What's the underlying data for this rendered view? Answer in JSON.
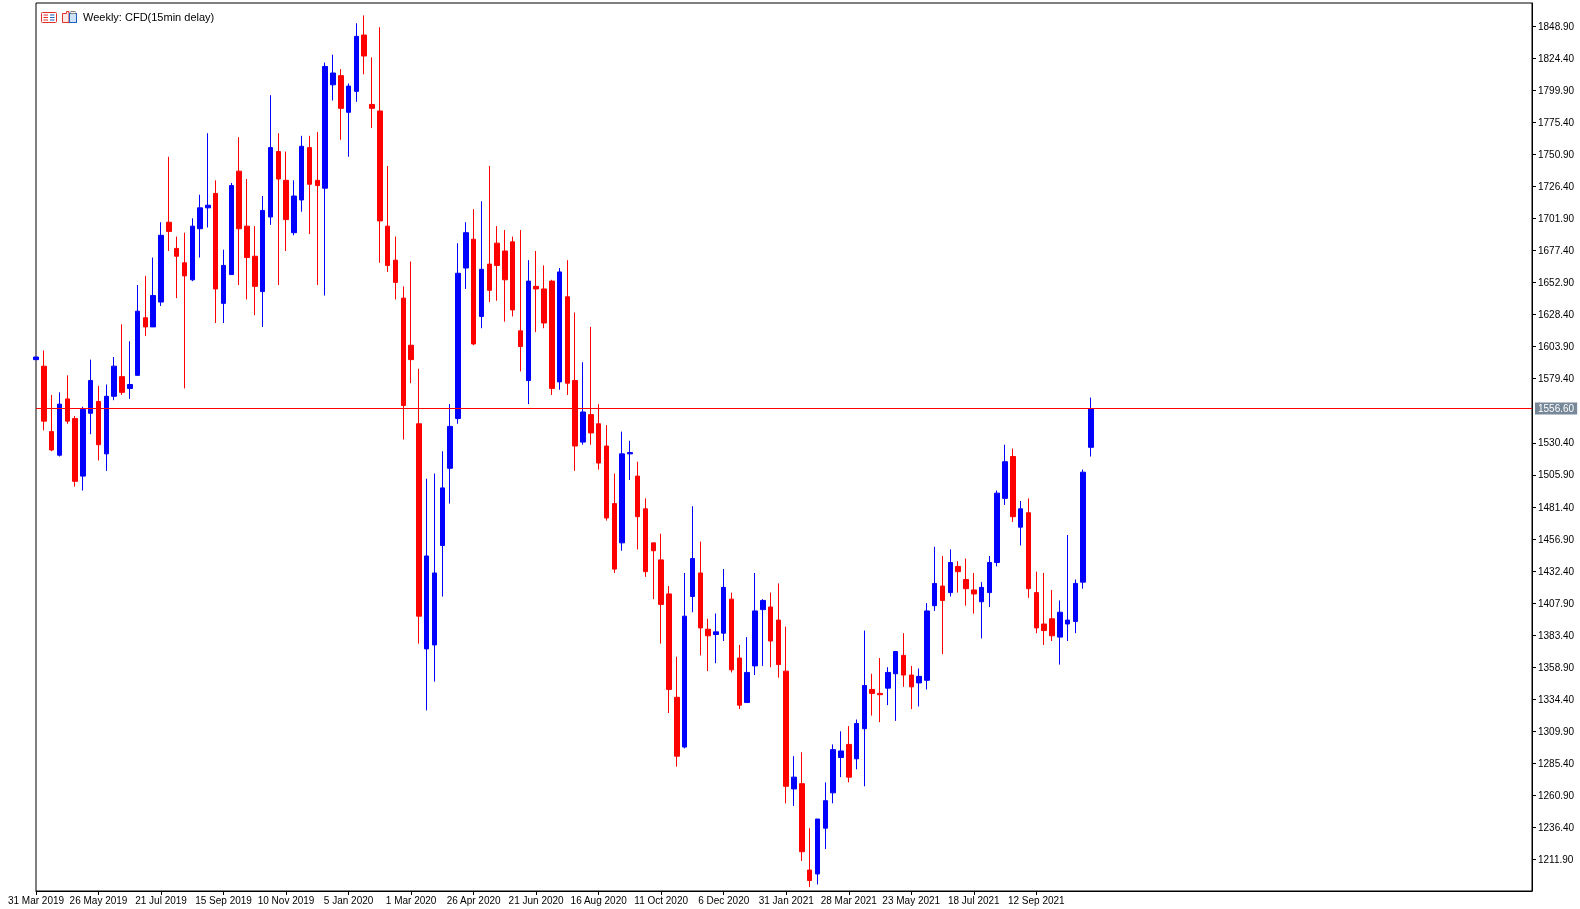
{
  "chart_data": {
    "type": "candlestick",
    "title": "Weekly: CFD(15min delay)",
    "x": [
      "2019-03-31",
      "2019-04-07",
      "2019-04-14",
      "2019-04-21",
      "2019-04-28",
      "2019-05-05",
      "2019-05-12",
      "2019-05-19",
      "2019-05-26",
      "2019-06-02",
      "2019-06-09",
      "2019-06-16",
      "2019-06-23",
      "2019-06-30",
      "2019-07-07",
      "2019-07-14",
      "2019-07-21",
      "2019-07-28",
      "2019-08-04",
      "2019-08-11",
      "2019-08-18",
      "2019-08-25",
      "2019-09-01",
      "2019-09-08",
      "2019-09-15",
      "2019-09-22",
      "2019-09-29",
      "2019-10-06",
      "2019-10-13",
      "2019-10-20",
      "2019-10-27",
      "2019-11-03",
      "2019-11-10",
      "2019-11-17",
      "2019-11-24",
      "2019-12-01",
      "2019-12-08",
      "2019-12-15",
      "2019-12-22",
      "2019-12-29",
      "2020-01-05",
      "2020-01-12",
      "2020-01-19",
      "2020-01-26",
      "2020-02-02",
      "2020-02-09",
      "2020-02-16",
      "2020-02-23",
      "2020-03-01",
      "2020-03-08",
      "2020-03-15",
      "2020-03-22",
      "2020-03-29",
      "2020-04-05",
      "2020-04-12",
      "2020-04-19",
      "2020-04-26",
      "2020-05-03",
      "2020-05-10",
      "2020-05-17",
      "2020-05-24",
      "2020-05-31",
      "2020-06-07",
      "2020-06-14",
      "2020-06-21",
      "2020-06-28",
      "2020-07-05",
      "2020-07-12",
      "2020-07-19",
      "2020-07-26",
      "2020-08-02",
      "2020-08-09",
      "2020-08-16",
      "2020-08-23",
      "2020-08-30",
      "2020-09-06",
      "2020-09-13",
      "2020-09-20",
      "2020-09-27",
      "2020-10-04",
      "2020-10-11",
      "2020-10-18",
      "2020-10-25",
      "2020-11-01",
      "2020-11-08",
      "2020-11-15",
      "2020-11-22",
      "2020-11-29",
      "2020-12-06",
      "2020-12-13",
      "2020-12-20",
      "2020-12-27",
      "2021-01-03",
      "2021-01-10",
      "2021-01-17",
      "2021-01-24",
      "2021-01-31",
      "2021-02-07",
      "2021-02-14",
      "2021-02-21",
      "2021-02-28",
      "2021-03-07",
      "2021-03-14",
      "2021-03-21",
      "2021-03-28",
      "2021-04-04",
      "2021-04-11",
      "2021-04-18",
      "2021-04-25",
      "2021-05-02",
      "2021-05-09",
      "2021-05-16",
      "2021-05-23",
      "2021-05-30",
      "2021-06-06",
      "2021-06-13",
      "2021-06-20",
      "2021-06-27",
      "2021-07-04",
      "2021-07-11",
      "2021-07-18",
      "2021-07-25",
      "2021-08-01",
      "2021-08-08",
      "2021-08-15",
      "2021-08-22",
      "2021-08-29",
      "2021-09-05",
      "2021-09-12",
      "2021-09-19",
      "2021-09-26",
      "2021-10-03",
      "2021-10-10",
      "2021-10-17",
      "2021-10-24",
      "2021-10-31"
    ],
    "ohlc": [
      [
        1594,
        1596,
        1594,
        1596
      ],
      [
        1589,
        1601,
        1540,
        1547
      ],
      [
        1539,
        1567,
        1524,
        1525
      ],
      [
        1521,
        1569,
        1520,
        1560
      ],
      [
        1564,
        1582,
        1545,
        1547
      ],
      [
        1549,
        1551,
        1497,
        1501
      ],
      [
        1505,
        1558,
        1494,
        1556
      ],
      [
        1553,
        1594,
        1537,
        1578
      ],
      [
        1562,
        1574,
        1517,
        1529
      ],
      [
        1522,
        1575,
        1509,
        1566
      ],
      [
        1566,
        1596,
        1563,
        1589
      ],
      [
        1581,
        1621,
        1567,
        1569
      ],
      [
        1572,
        1608,
        1564,
        1575
      ],
      [
        1582,
        1651,
        1582,
        1631
      ],
      [
        1626,
        1658,
        1612,
        1619
      ],
      [
        1619,
        1672,
        1619,
        1643
      ],
      [
        1638,
        1699,
        1635,
        1689
      ],
      [
        1699,
        1749,
        1677,
        1692
      ],
      [
        1679,
        1688,
        1641,
        1673
      ],
      [
        1668,
        1691,
        1572,
        1658
      ],
      [
        1655,
        1702,
        1654,
        1696
      ],
      [
        1694,
        1720,
        1672,
        1710
      ],
      [
        1710,
        1767,
        1695,
        1712
      ],
      [
        1721,
        1731,
        1622,
        1648
      ],
      [
        1637,
        1678,
        1622,
        1666
      ],
      [
        1659,
        1729,
        1659,
        1727
      ],
      [
        1738,
        1764,
        1651,
        1694
      ],
      [
        1696,
        1732,
        1640,
        1672
      ],
      [
        1673,
        1696,
        1628,
        1650
      ],
      [
        1646,
        1719,
        1619,
        1708
      ],
      [
        1703,
        1796,
        1697,
        1756
      ],
      [
        1753,
        1767,
        1651,
        1732
      ],
      [
        1731,
        1753,
        1677,
        1701
      ],
      [
        1691,
        1731,
        1689,
        1719
      ],
      [
        1716,
        1765,
        1707,
        1757
      ],
      [
        1756,
        1765,
        1690,
        1728
      ],
      [
        1731,
        1768,
        1651,
        1727
      ],
      [
        1725,
        1821,
        1643,
        1818
      ],
      [
        1804,
        1827,
        1792,
        1813
      ],
      [
        1811,
        1816,
        1762,
        1786
      ],
      [
        1783,
        1805,
        1749,
        1803
      ],
      [
        1799,
        1851,
        1791,
        1841
      ],
      [
        1842,
        1857,
        1812,
        1826
      ],
      [
        1789,
        1825,
        1771,
        1786
      ],
      [
        1784,
        1848,
        1668,
        1700
      ],
      [
        1696,
        1742,
        1661,
        1666
      ],
      [
        1670,
        1688,
        1640,
        1653
      ],
      [
        1641,
        1650,
        1533,
        1559
      ],
      [
        1605,
        1669,
        1576,
        1594
      ],
      [
        1545,
        1587,
        1377,
        1398
      ],
      [
        1373,
        1503,
        1326,
        1444
      ],
      [
        1376,
        1507,
        1348,
        1431
      ],
      [
        1452,
        1524,
        1413,
        1496
      ],
      [
        1511,
        1560,
        1484,
        1543
      ],
      [
        1549,
        1683,
        1545,
        1660
      ],
      [
        1664,
        1699,
        1648,
        1691
      ],
      [
        1686,
        1709,
        1605,
        1606
      ],
      [
        1627,
        1715,
        1618,
        1663
      ],
      [
        1667,
        1742,
        1638,
        1647
      ],
      [
        1683,
        1696,
        1639,
        1666
      ],
      [
        1677,
        1693,
        1623,
        1655
      ],
      [
        1684,
        1688,
        1627,
        1632
      ],
      [
        1616,
        1693,
        1585,
        1604
      ],
      [
        1578,
        1670,
        1560,
        1654
      ],
      [
        1650,
        1677,
        1615,
        1648
      ],
      [
        1648,
        1666,
        1618,
        1622
      ],
      [
        1654,
        1655,
        1567,
        1572
      ],
      [
        1577,
        1664,
        1571,
        1661
      ],
      [
        1642,
        1670,
        1567,
        1576
      ],
      [
        1578,
        1630,
        1509,
        1528
      ],
      [
        1531,
        1592,
        1529,
        1554
      ],
      [
        1552,
        1619,
        1529,
        1538
      ],
      [
        1545,
        1560,
        1510,
        1515
      ],
      [
        1528,
        1544,
        1471,
        1473
      ],
      [
        1484,
        1507,
        1431,
        1434
      ],
      [
        1454,
        1539,
        1448,
        1522
      ],
      [
        1522,
        1532,
        1502,
        1523
      ],
      [
        1505,
        1516,
        1449,
        1474
      ],
      [
        1480,
        1488,
        1428,
        1432
      ],
      [
        1454,
        1454,
        1411,
        1448
      ],
      [
        1441,
        1461,
        1377,
        1407
      ],
      [
        1415,
        1421,
        1324,
        1342
      ],
      [
        1336,
        1367,
        1283,
        1291
      ],
      [
        1298,
        1431,
        1297,
        1398
      ],
      [
        1413,
        1482,
        1401,
        1442
      ],
      [
        1431,
        1455,
        1368,
        1389
      ],
      [
        1388,
        1396,
        1356,
        1383
      ],
      [
        1384,
        1400,
        1362,
        1386
      ],
      [
        1385,
        1434,
        1379,
        1420
      ],
      [
        1411,
        1416,
        1355,
        1357
      ],
      [
        1366,
        1376,
        1327,
        1330
      ],
      [
        1332,
        1382,
        1332,
        1355
      ],
      [
        1360,
        1431,
        1353,
        1402
      ],
      [
        1403,
        1411,
        1360,
        1410
      ],
      [
        1405,
        1416,
        1359,
        1379
      ],
      [
        1395,
        1423,
        1351,
        1361
      ],
      [
        1356,
        1390,
        1255,
        1268
      ],
      [
        1266,
        1291,
        1253,
        1275
      ],
      [
        1270,
        1294,
        1211,
        1218
      ],
      [
        1204,
        1236,
        1191,
        1196
      ],
      [
        1201,
        1243,
        1193,
        1243
      ],
      [
        1236,
        1271,
        1220,
        1257
      ],
      [
        1263,
        1300,
        1255,
        1296
      ],
      [
        1290,
        1310,
        1275,
        1295
      ],
      [
        1300,
        1314,
        1271,
        1275
      ],
      [
        1289,
        1319,
        1281,
        1316
      ],
      [
        1312,
        1387,
        1268,
        1345
      ],
      [
        1342,
        1354,
        1322,
        1339
      ],
      [
        1339,
        1366,
        1317,
        1338
      ],
      [
        1343,
        1359,
        1330,
        1355
      ],
      [
        1354,
        1371,
        1318,
        1371
      ],
      [
        1368,
        1385,
        1344,
        1353
      ],
      [
        1353,
        1360,
        1327,
        1344
      ],
      [
        1347,
        1358,
        1329,
        1352
      ],
      [
        1349,
        1408,
        1342,
        1402
      ],
      [
        1406,
        1451,
        1402,
        1423
      ],
      [
        1421,
        1444,
        1369,
        1410
      ],
      [
        1416,
        1449,
        1413,
        1439
      ],
      [
        1436,
        1440,
        1416,
        1432
      ],
      [
        1426,
        1442,
        1406,
        1419
      ],
      [
        1418,
        1431,
        1400,
        1415
      ],
      [
        1409,
        1424,
        1381,
        1420
      ],
      [
        1416,
        1444,
        1405,
        1439
      ],
      [
        1439,
        1494,
        1436,
        1492
      ],
      [
        1488,
        1529,
        1483,
        1516
      ],
      [
        1520,
        1526,
        1470,
        1474
      ],
      [
        1466,
        1486,
        1452,
        1480
      ],
      [
        1477,
        1488,
        1412,
        1419
      ],
      [
        1416,
        1432,
        1385,
        1389
      ],
      [
        1392,
        1431,
        1376,
        1387
      ],
      [
        1396,
        1418,
        1379,
        1383
      ],
      [
        1382,
        1410,
        1361,
        1401
      ],
      [
        1392,
        1460,
        1379,
        1395
      ],
      [
        1394,
        1426,
        1385,
        1423
      ],
      [
        1424,
        1510,
        1419,
        1508
      ],
      [
        1527,
        1565,
        1520,
        1556.6
      ]
    ],
    "colors": [
      "#0000ff",
      "#ff0000",
      "#ff0000",
      "#0000ff",
      "#ff0000",
      "#ff0000",
      "#0000ff",
      "#0000ff",
      "#ff0000",
      "#0000ff",
      "#0000ff",
      "#ff0000",
      "#0000ff",
      "#0000ff",
      "#ff0000",
      "#0000ff",
      "#0000ff",
      "#ff0000",
      "#ff0000",
      "#ff0000",
      "#0000ff",
      "#0000ff",
      "#0000ff",
      "#ff0000",
      "#0000ff",
      "#0000ff",
      "#ff0000",
      "#ff0000",
      "#ff0000",
      "#0000ff",
      "#0000ff",
      "#ff0000",
      "#ff0000",
      "#0000ff",
      "#0000ff",
      "#ff0000",
      "#ff0000",
      "#0000ff",
      "#0000ff",
      "#ff0000",
      "#0000ff",
      "#0000ff",
      "#ff0000",
      "#ff0000",
      "#ff0000",
      "#ff0000",
      "#ff0000",
      "#ff0000",
      "#ff0000",
      "#ff0000",
      "#0000ff",
      "#0000ff",
      "#0000ff",
      "#0000ff",
      "#0000ff",
      "#0000ff",
      "#ff0000",
      "#0000ff",
      "#ff0000",
      "#ff0000",
      "#ff0000",
      "#ff0000",
      "#ff0000",
      "#0000ff",
      "#ff0000",
      "#ff0000",
      "#ff0000",
      "#0000ff",
      "#ff0000",
      "#ff0000",
      "#0000ff",
      "#ff0000",
      "#ff0000",
      "#ff0000",
      "#ff0000",
      "#0000ff",
      "#0000ff",
      "#ff0000",
      "#ff0000",
      "#ff0000",
      "#ff0000",
      "#ff0000",
      "#ff0000",
      "#0000ff",
      "#0000ff",
      "#ff0000",
      "#ff0000",
      "#0000ff",
      "#0000ff",
      "#ff0000",
      "#ff0000",
      "#0000ff",
      "#0000ff",
      "#0000ff",
      "#ff0000",
      "#ff0000",
      "#ff0000",
      "#0000ff",
      "#ff0000",
      "#ff0000",
      "#0000ff",
      "#0000ff",
      "#0000ff",
      "#0000ff",
      "#ff0000",
      "#0000ff",
      "#0000ff",
      "#ff0000",
      "#ff0000",
      "#0000ff",
      "#0000ff",
      "#ff0000",
      "#ff0000",
      "#0000ff",
      "#0000ff",
      "#0000ff",
      "#ff0000",
      "#0000ff",
      "#ff0000",
      "#ff0000",
      "#ff0000",
      "#0000ff",
      "#0000ff",
      "#0000ff",
      "#0000ff",
      "#ff0000",
      "#0000ff",
      "#ff0000",
      "#ff0000",
      "#ff0000",
      "#ff0000",
      "#0000ff",
      "#0000ff",
      "#0000ff",
      "#0000ff",
      "#0000ff"
    ],
    "xlim": [
      "2019-03-31",
      "2022-11-30"
    ],
    "xticks": [
      {
        "value": "2019-03-31",
        "label": "31 Mar 2019"
      },
      {
        "value": "2019-05-26",
        "label": "26 May 2019"
      },
      {
        "value": "2019-07-21",
        "label": "21 Jul 2019"
      },
      {
        "value": "2019-09-15",
        "label": "15 Sep 2019"
      },
      {
        "value": "2019-11-10",
        "label": "10 Nov 2019"
      },
      {
        "value": "2020-01-05",
        "label": "5 Jan 2020"
      },
      {
        "value": "2020-03-01",
        "label": "1 Mar 2020"
      },
      {
        "value": "2020-04-26",
        "label": "26 Apr 2020"
      },
      {
        "value": "2020-06-21",
        "label": "21 Jun 2020"
      },
      {
        "value": "2020-08-16",
        "label": "16 Aug 2020"
      },
      {
        "value": "2020-10-11",
        "label": "11 Oct 2020"
      },
      {
        "value": "2020-12-06",
        "label": "6 Dec 2020"
      },
      {
        "value": "2021-01-31",
        "label": "31 Jan 2021"
      },
      {
        "value": "2021-03-28",
        "label": "28 Mar 2021"
      },
      {
        "value": "2021-05-23",
        "label": "23 May 2021"
      },
      {
        "value": "2021-07-18",
        "label": "18 Jul 2021"
      },
      {
        "value": "2021-09-12",
        "label": "12 Sep 2021"
      }
    ],
    "ylim": [
      1188,
      1866.5
    ],
    "yticks": [
      {
        "value": 1211.9,
        "label": "1211.90"
      },
      {
        "value": 1236.4,
        "label": "1236.40"
      },
      {
        "value": 1260.9,
        "label": "1260.90"
      },
      {
        "value": 1285.4,
        "label": "1285.40"
      },
      {
        "value": 1309.9,
        "label": "1309.90"
      },
      {
        "value": 1334.4,
        "label": "1334.40"
      },
      {
        "value": 1358.9,
        "label": "1358.90"
      },
      {
        "value": 1383.4,
        "label": "1383.40"
      },
      {
        "value": 1407.9,
        "label": "1407.90"
      },
      {
        "value": 1432.4,
        "label": "1432.40"
      },
      {
        "value": 1456.9,
        "label": "1456.90"
      },
      {
        "value": 1481.4,
        "label": "1481.40"
      },
      {
        "value": 1505.9,
        "label": "1505.90"
      },
      {
        "value": 1530.4,
        "label": "1530.40"
      },
      {
        "value": 1579.4,
        "label": "1579.40"
      },
      {
        "value": 1603.9,
        "label": "1603.90"
      },
      {
        "value": 1628.4,
        "label": "1628.40"
      },
      {
        "value": 1652.9,
        "label": "1652.90"
      },
      {
        "value": 1677.4,
        "label": "1677.40"
      },
      {
        "value": 1701.9,
        "label": "1701.90"
      },
      {
        "value": 1726.4,
        "label": "1726.40"
      },
      {
        "value": 1750.9,
        "label": "1750.90"
      },
      {
        "value": 1775.4,
        "label": "1775.40"
      },
      {
        "value": 1799.9,
        "label": "1799.90"
      },
      {
        "value": 1824.4,
        "label": "1824.40"
      },
      {
        "value": 1848.9,
        "label": "1848.90"
      }
    ],
    "ref_lines": [
      {
        "axis": "y",
        "value": 1556.6,
        "label": "1556.60",
        "color": "#ff0000"
      }
    ],
    "grid": false
  }
}
